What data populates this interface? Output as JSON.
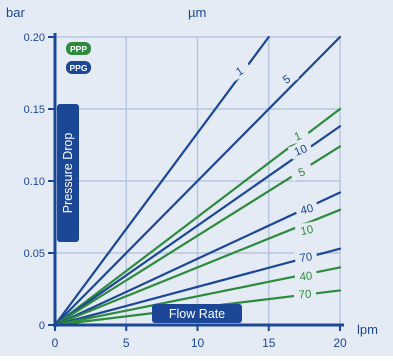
{
  "colors": {
    "panel": "#e4ebf5",
    "grid": "#b8c6e0",
    "axis": "#1c4796",
    "series_ppp": "#2e8b3e",
    "series_ppg": "#1c4796",
    "text": "#1c4796",
    "label_text": "#ffffff"
  },
  "legend": [
    {
      "label": "PPP",
      "color": "#2e8b3e"
    },
    {
      "label": "PPG",
      "color": "#1c4796"
    }
  ],
  "chart_data": {
    "type": "line",
    "title": "",
    "xlabel": "Flow Rate",
    "ylabel": "Pressure Drop",
    "x_unit": "lpm",
    "y_unit": "bar",
    "top_unit": "µm",
    "xlim": [
      0,
      20
    ],
    "ylim": [
      0,
      0.2
    ],
    "x_ticks": [
      "0",
      "5",
      "10",
      "15",
      "20"
    ],
    "y_ticks": [
      "0",
      "0.05",
      "0.10",
      "0.15",
      "0.20"
    ],
    "grid": true,
    "legend_position": "top-left",
    "series": [
      {
        "name": "1",
        "group": "PPG",
        "x": [
          0,
          15
        ],
        "y": [
          0,
          0.2
        ]
      },
      {
        "name": "5",
        "group": "PPG",
        "x": [
          0,
          20
        ],
        "y": [
          0,
          0.2
        ]
      },
      {
        "name": "1",
        "group": "PPP",
        "x": [
          0,
          20
        ],
        "y": [
          0,
          0.15
        ]
      },
      {
        "name": "10",
        "group": "PPG",
        "x": [
          0,
          20
        ],
        "y": [
          0,
          0.138
        ]
      },
      {
        "name": "5",
        "group": "PPP",
        "x": [
          0,
          20
        ],
        "y": [
          0,
          0.124
        ]
      },
      {
        "name": "40",
        "group": "PPG",
        "x": [
          0,
          20
        ],
        "y": [
          0,
          0.092
        ]
      },
      {
        "name": "10",
        "group": "PPP",
        "x": [
          0,
          20
        ],
        "y": [
          0,
          0.08
        ]
      },
      {
        "name": "70",
        "group": "PPG",
        "x": [
          0,
          20
        ],
        "y": [
          0,
          0.053
        ]
      },
      {
        "name": "40",
        "group": "PPP",
        "x": [
          0,
          20
        ],
        "y": [
          0,
          0.04
        ]
      },
      {
        "name": "70",
        "group": "PPP",
        "x": [
          0,
          20
        ],
        "y": [
          0,
          0.024
        ]
      }
    ]
  }
}
